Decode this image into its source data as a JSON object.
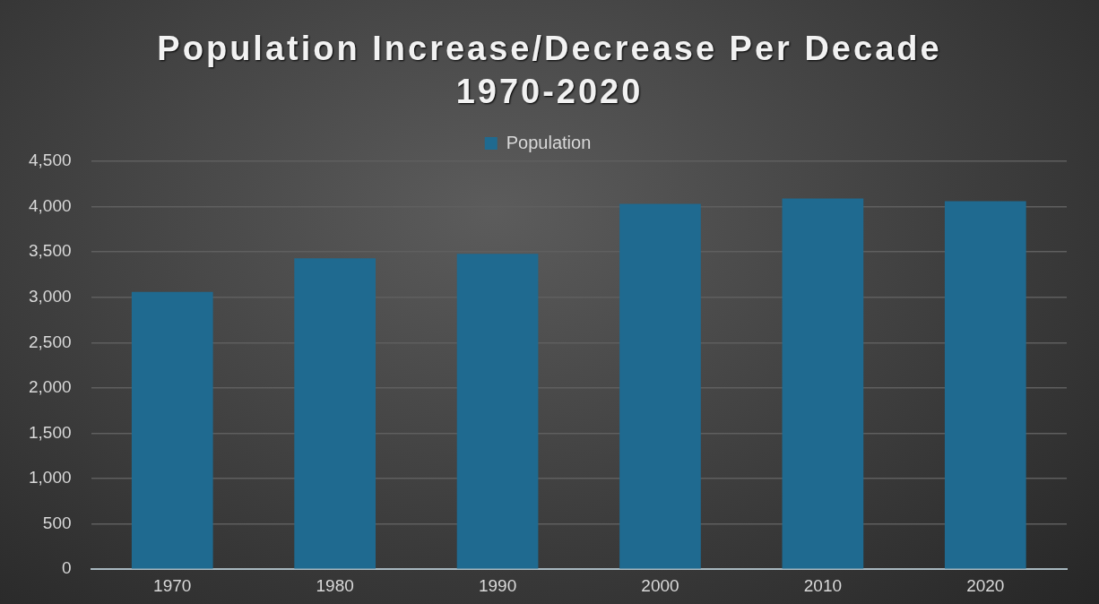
{
  "chart_data": {
    "type": "bar",
    "title": "Population Increase/Decrease Per Decade 1970-2020",
    "categories": [
      "1970",
      "1980",
      "1990",
      "2000",
      "2010",
      "2020"
    ],
    "series": [
      {
        "name": "Population",
        "color": "#1f6a90",
        "values": [
          3060,
          3430,
          3480,
          4030,
          4090,
          4060
        ]
      }
    ],
    "ylim": [
      0,
      4500
    ],
    "yticks": [
      0,
      500,
      {
        "value": 1000,
        "label": "1,000"
      },
      {
        "value": 1500,
        "label": "1,500"
      },
      {
        "value": 2000,
        "label": "2,000"
      },
      {
        "value": 2500,
        "label": "2,500"
      },
      {
        "value": 3000,
        "label": "3,000"
      },
      {
        "value": 3500,
        "label": "3,500"
      },
      {
        "value": 4000,
        "label": "4,000"
      },
      {
        "value": 4500,
        "label": "4,500"
      }
    ],
    "grid": "y",
    "legend": "top"
  }
}
